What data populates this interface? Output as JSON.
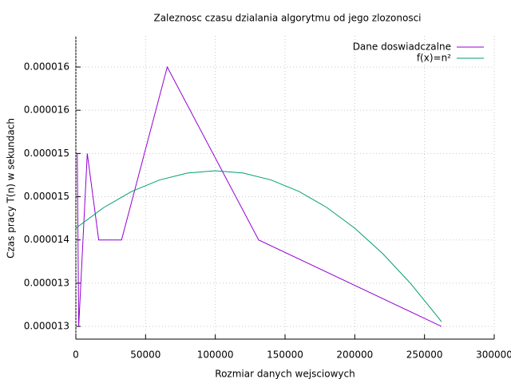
{
  "chart_data": {
    "type": "line",
    "title": "Zaleznosc czasu dzialania algorytmu od jego zlozonosci",
    "x_label": "Rozmiar danych wejsciowych",
    "y_label": "Czas pracy T(n) w sekundach",
    "xlim": [
      0,
      300000
    ],
    "xticks": [
      0,
      50000,
      100000,
      150000,
      200000,
      250000,
      300000
    ],
    "ylim": [
      1.2738e-05,
      1.6596e-05
    ],
    "yticks": [
      {
        "value": 1.29e-05,
        "label": "0.000013"
      },
      {
        "value": 1.345e-05,
        "label": "0.000013"
      },
      {
        "value": 1.4e-05,
        "label": "0.000014"
      },
      {
        "value": 1.455e-05,
        "label": "0.000015"
      },
      {
        "value": 1.51e-05,
        "label": "0.000015"
      },
      {
        "value": 1.565e-05,
        "label": "0.000016"
      },
      {
        "value": 1.62e-05,
        "label": "0.000016"
      }
    ],
    "grid": true,
    "legend": "top-right",
    "series": [
      {
        "name": "Dane doswiadczalne",
        "color": "#9400d3",
        "x": [
          1024,
          2048,
          8192,
          16384,
          32768,
          65536,
          131072,
          262144
        ],
        "values": [
          1.51e-05,
          1.29e-05,
          1.51e-05,
          1.4e-05,
          1.4e-05,
          1.62e-05,
          1.4e-05,
          1.29e-05
        ]
      },
      {
        "name": "f(x)=n²",
        "color": "#009e73",
        "x": [
          0,
          20000,
          40000,
          60000,
          80000,
          100000,
          120000,
          140000,
          160000,
          180000,
          200000,
          220000,
          240000,
          260000,
          262144
        ],
        "values": [
          1.4149e-05,
          1.4412e-05,
          1.4617e-05,
          1.4763e-05,
          1.4851e-05,
          1.488e-05,
          1.4851e-05,
          1.4763e-05,
          1.4617e-05,
          1.4412e-05,
          1.4149e-05,
          1.3827e-05,
          1.3447e-05,
          1.3009e-05,
          1.296e-05
        ]
      }
    ]
  }
}
